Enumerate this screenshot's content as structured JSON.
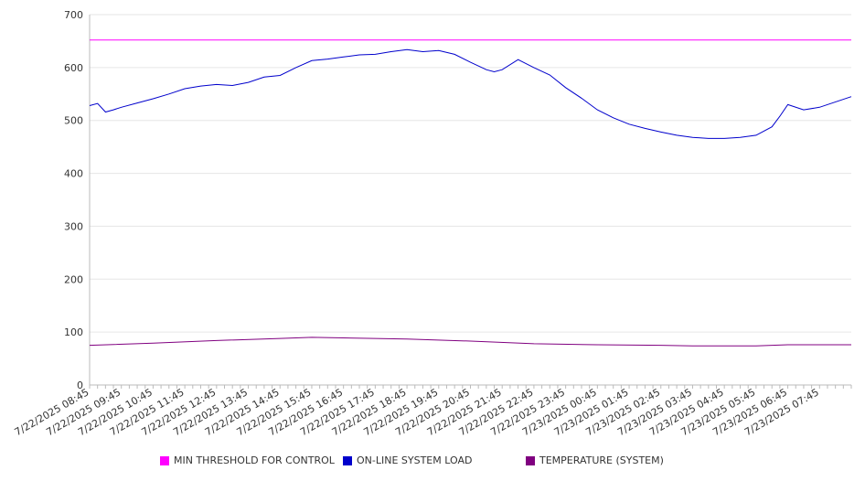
{
  "chart_data": {
    "type": "line",
    "ylim": [
      0,
      700
    ],
    "yticks": [
      0,
      100,
      200,
      300,
      400,
      500,
      600,
      700
    ],
    "grid": "horizontal",
    "legend_position": "bottom",
    "x_start": "7/22/2025 08:45",
    "x_end": "7/23/2025 08:45",
    "x_tick_labels": [
      "7/22/2025 08:45",
      "7/22/2025 09:45",
      "7/22/2025 10:45",
      "7/22/2025 11:45",
      "7/22/2025 12:45",
      "7/22/2025 13:45",
      "7/22/2025 14:45",
      "7/22/2025 15:45",
      "7/22/2025 16:45",
      "7/22/2025 17:45",
      "7/22/2025 18:45",
      "7/22/2025 19:45",
      "7/22/2025 20:45",
      "7/22/2025 21:45",
      "7/22/2025 22:45",
      "7/22/2025 23:45",
      "7/23/2025 00:45",
      "7/23/2025 01:45",
      "7/23/2025 02:45",
      "7/23/2025 03:45",
      "7/23/2025 04:45",
      "7/23/2025 05:45",
      "7/23/2025 06:45",
      "7/23/2025 07:45"
    ],
    "series": [
      {
        "name": "MIN THRESHOLD FOR CONTROL",
        "color": "#ff00ff",
        "x": [
          "7/22/2025 08:45",
          "7/23/2025 08:45"
        ],
        "values": [
          652,
          652
        ]
      },
      {
        "name": "ON-LINE SYSTEM LOAD",
        "color": "#0000cc",
        "x": [
          "7/22/2025 08:45",
          "7/22/2025 09:00",
          "7/22/2025 09:15",
          "7/22/2025 09:30",
          "7/22/2025 09:45",
          "7/22/2025 10:15",
          "7/22/2025 10:45",
          "7/22/2025 11:15",
          "7/22/2025 11:45",
          "7/22/2025 12:15",
          "7/22/2025 12:45",
          "7/22/2025 13:15",
          "7/22/2025 13:45",
          "7/22/2025 14:15",
          "7/22/2025 14:45",
          "7/22/2025 15:15",
          "7/22/2025 15:45",
          "7/22/2025 16:15",
          "7/22/2025 16:45",
          "7/22/2025 17:15",
          "7/22/2025 17:45",
          "7/22/2025 18:15",
          "7/22/2025 18:45",
          "7/22/2025 19:15",
          "7/22/2025 19:45",
          "7/22/2025 20:15",
          "7/22/2025 20:45",
          "7/22/2025 21:15",
          "7/22/2025 21:30",
          "7/22/2025 21:45",
          "7/22/2025 22:15",
          "7/22/2025 22:45",
          "7/22/2025 23:15",
          "7/22/2025 23:45",
          "7/23/2025 00:15",
          "7/23/2025 00:45",
          "7/23/2025 01:15",
          "7/23/2025 01:45",
          "7/23/2025 02:15",
          "7/23/2025 02:45",
          "7/23/2025 03:15",
          "7/23/2025 03:45",
          "7/23/2025 04:15",
          "7/23/2025 04:45",
          "7/23/2025 05:15",
          "7/23/2025 05:45",
          "7/23/2025 06:15",
          "7/23/2025 06:30",
          "7/23/2025 06:45",
          "7/23/2025 07:15",
          "7/23/2025 07:45",
          "7/23/2025 08:45"
        ],
        "values": [
          528,
          532,
          516,
          520,
          525,
          533,
          541,
          550,
          560,
          565,
          568,
          566,
          572,
          582,
          585,
          600,
          613,
          616,
          620,
          624,
          625,
          630,
          634,
          630,
          632,
          625,
          610,
          596,
          592,
          596,
          615,
          600,
          586,
          562,
          542,
          520,
          505,
          493,
          485,
          478,
          472,
          468,
          466,
          466,
          468,
          472,
          488,
          508,
          530,
          520,
          525,
          545
        ]
      },
      {
        "name": "TEMPERATURE (SYSTEM)",
        "color": "#800080",
        "x": [
          "7/22/2025 08:45",
          "7/22/2025 10:45",
          "7/22/2025 12:45",
          "7/22/2025 14:45",
          "7/22/2025 15:45",
          "7/22/2025 16:45",
          "7/22/2025 18:45",
          "7/22/2025 20:45",
          "7/22/2025 22:45",
          "7/23/2025 00:45",
          "7/23/2025 02:45",
          "7/23/2025 03:45",
          "7/23/2025 05:45",
          "7/23/2025 06:45",
          "7/23/2025 08:45"
        ],
        "values": [
          75,
          79,
          84,
          88,
          90,
          89,
          87,
          83,
          78,
          76,
          75,
          74,
          74,
          76,
          76
        ]
      }
    ]
  }
}
